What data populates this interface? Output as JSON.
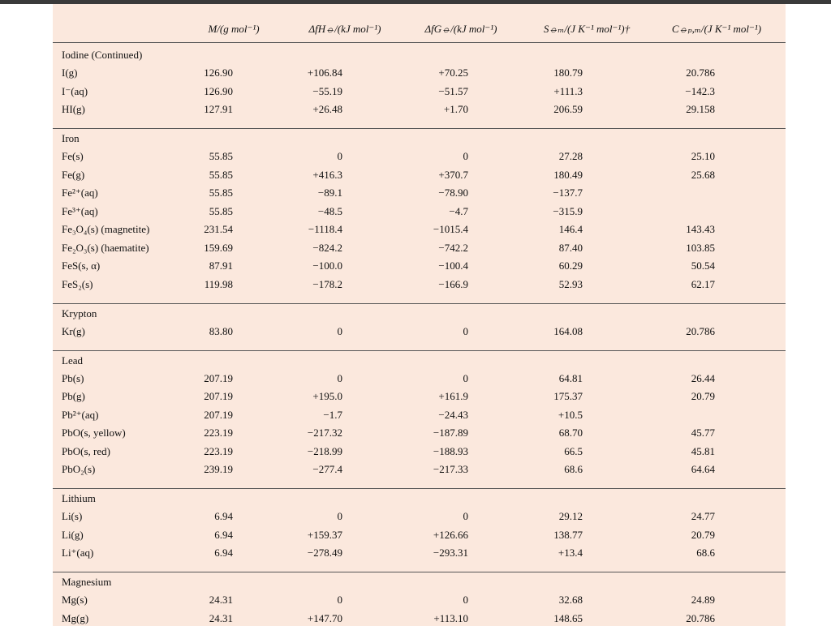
{
  "table": {
    "columns": [
      "M/(g mol⁻¹)",
      "ΔfH⦵/(kJ mol⁻¹)",
      "ΔfG⦵/(kJ mol⁻¹)",
      "S⦵ₘ/(J K⁻¹ mol⁻¹)†",
      "C⦵ₚ,ₘ/(J K⁻¹ mol⁻¹)"
    ],
    "groups": [
      {
        "title": "Iodine (Continued)",
        "rows": [
          [
            "I(g)",
            "126.90",
            "+106.84",
            "+70.25",
            "180.79",
            "20.786"
          ],
          [
            "I⁻(aq)",
            "126.90",
            "−55.19",
            "−51.57",
            "+111.3",
            "−142.3"
          ],
          [
            "HI(g)",
            "127.91",
            "+26.48",
            "+1.70",
            "206.59",
            "29.158"
          ]
        ]
      },
      {
        "title": "Iron",
        "rows": [
          [
            "Fe(s)",
            "55.85",
            "0",
            "0",
            "27.28",
            "25.10"
          ],
          [
            "Fe(g)",
            "55.85",
            "+416.3",
            "+370.7",
            "180.49",
            "25.68"
          ],
          [
            "Fe²⁺(aq)",
            "55.85",
            "−89.1",
            "−78.90",
            "−137.7",
            null
          ],
          [
            "Fe³⁺(aq)",
            "55.85",
            "−48.5",
            "−4.7",
            "−315.9",
            null
          ],
          [
            "Fe₃O₄(s) (magnetite)",
            "231.54",
            "−1118.4",
            "−1015.4",
            "146.4",
            "143.43"
          ],
          [
            "Fe₂O₃(s) (haematite)",
            "159.69",
            "−824.2",
            "−742.2",
            "87.40",
            "103.85"
          ],
          [
            "FeS(s, α)",
            "87.91",
            "−100.0",
            "−100.4",
            "60.29",
            "50.54"
          ],
          [
            "FeS₂(s)",
            "119.98",
            "−178.2",
            "−166.9",
            "52.93",
            "62.17"
          ]
        ]
      },
      {
        "title": "Krypton",
        "rows": [
          [
            "Kr(g)",
            "83.80",
            "0",
            "0",
            "164.08",
            "20.786"
          ]
        ]
      },
      {
        "title": "Lead",
        "rows": [
          [
            "Pb(s)",
            "207.19",
            "0",
            "0",
            "64.81",
            "26.44"
          ],
          [
            "Pb(g)",
            "207.19",
            "+195.0",
            "+161.9",
            "175.37",
            "20.79"
          ],
          [
            "Pb²⁺(aq)",
            "207.19",
            "−1.7",
            "−24.43",
            "+10.5",
            null
          ],
          [
            "PbO(s, yellow)",
            "223.19",
            "−217.32",
            "−187.89",
            "68.70",
            "45.77"
          ],
          [
            "PbO(s, red)",
            "223.19",
            "−218.99",
            "−188.93",
            "66.5",
            "45.81"
          ],
          [
            "PbO₂(s)",
            "239.19",
            "−277.4",
            "−217.33",
            "68.6",
            "64.64"
          ]
        ]
      },
      {
        "title": "Lithium",
        "rows": [
          [
            "Li(s)",
            "6.94",
            "0",
            "0",
            "29.12",
            "24.77"
          ],
          [
            "Li(g)",
            "6.94",
            "+159.37",
            "+126.66",
            "138.77",
            "20.79"
          ],
          [
            "Li⁺(aq)",
            "6.94",
            "−278.49",
            "−293.31",
            "+13.4",
            "68.6"
          ]
        ]
      },
      {
        "title": "Magnesium",
        "rows": [
          [
            "Mg(s)",
            "24.31",
            "0",
            "0",
            "32.68",
            "24.89"
          ],
          [
            "Mg(g)",
            "24.31",
            "+147.70",
            "+113.10",
            "148.65",
            "20.786"
          ]
        ]
      }
    ]
  }
}
